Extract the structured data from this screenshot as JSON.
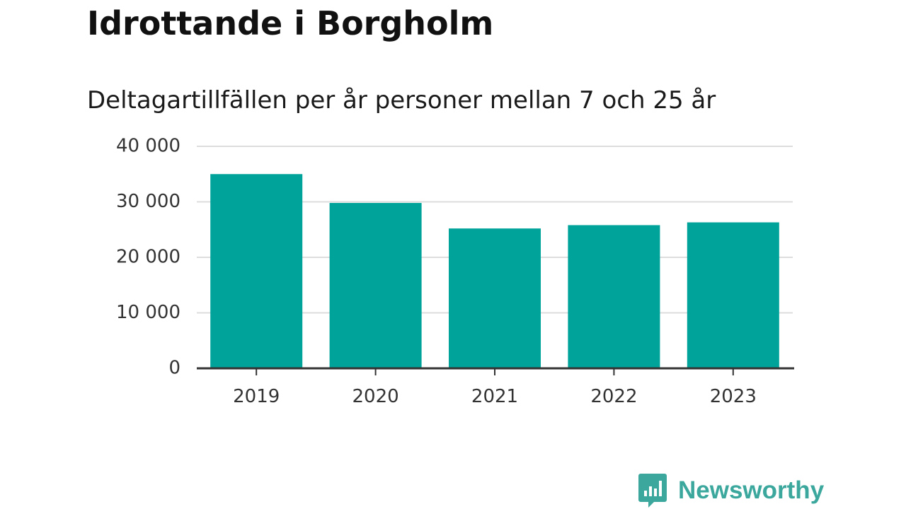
{
  "chart_data": {
    "type": "bar",
    "title": "Idrottande i Borgholm",
    "subtitle": "Deltagartillfällen per år personer mellan 7 och 25 år",
    "categories": [
      "2019",
      "2020",
      "2021",
      "2022",
      "2023"
    ],
    "values": [
      35000,
      29800,
      25200,
      25800,
      26300
    ],
    "ylim": [
      0,
      40000
    ],
    "yticks": [
      0,
      10000,
      20000,
      30000,
      40000
    ],
    "ytick_labels": [
      "0",
      "10 000",
      "20 000",
      "30 000",
      "40 000"
    ],
    "xlabel": "",
    "ylabel": "",
    "grid": true,
    "bar_color": "#00a39a",
    "grid_color": "#dddddd",
    "axis_color": "#333333"
  },
  "brand": {
    "name": "Newsworthy",
    "icon": "newsworthy-logo-icon",
    "color": "#3ba79d"
  }
}
